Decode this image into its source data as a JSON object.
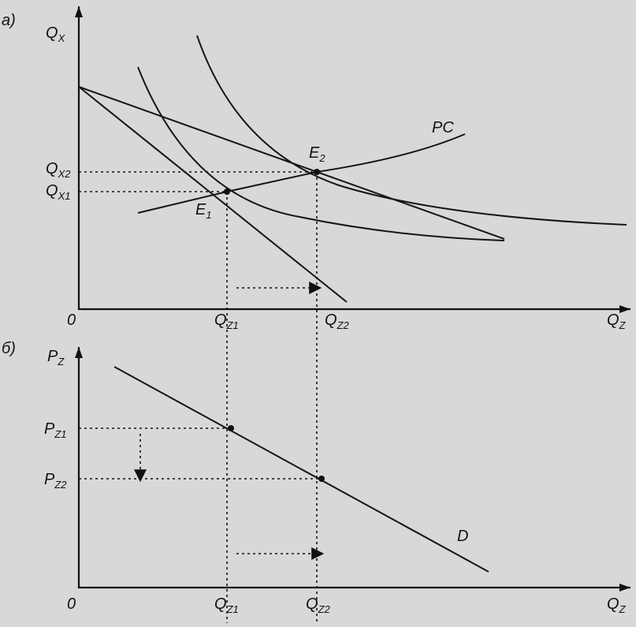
{
  "panel_a": {
    "tag": "а)",
    "y_axis": {
      "letter": "Q",
      "sub": "X"
    },
    "x_axis": {
      "letter": "Q",
      "sub": "Z"
    },
    "origin": "0",
    "y_marks": [
      {
        "letter": "Q",
        "sub": "X2"
      },
      {
        "letter": "Q",
        "sub": "X1"
      }
    ],
    "x_marks": [
      {
        "letter": "Q",
        "sub": "Z1"
      },
      {
        "letter": "Q",
        "sub": "Z2"
      }
    ],
    "points": [
      {
        "letter": "E",
        "sub": "1"
      },
      {
        "letter": "E",
        "sub": "2"
      }
    ],
    "curve_label": "PC"
  },
  "panel_b": {
    "tag": "б)",
    "y_axis": {
      "letter": "P",
      "sub": "Z"
    },
    "x_axis": {
      "letter": "Q",
      "sub": "Z"
    },
    "origin": "0",
    "y_marks": [
      {
        "letter": "P",
        "sub": "Z1"
      },
      {
        "letter": "P",
        "sub": "Z2"
      }
    ],
    "x_marks": [
      {
        "letter": "Q",
        "sub": "Z1"
      },
      {
        "letter": "Q",
        "sub": "Z2"
      }
    ],
    "curve_label": "D"
  }
}
